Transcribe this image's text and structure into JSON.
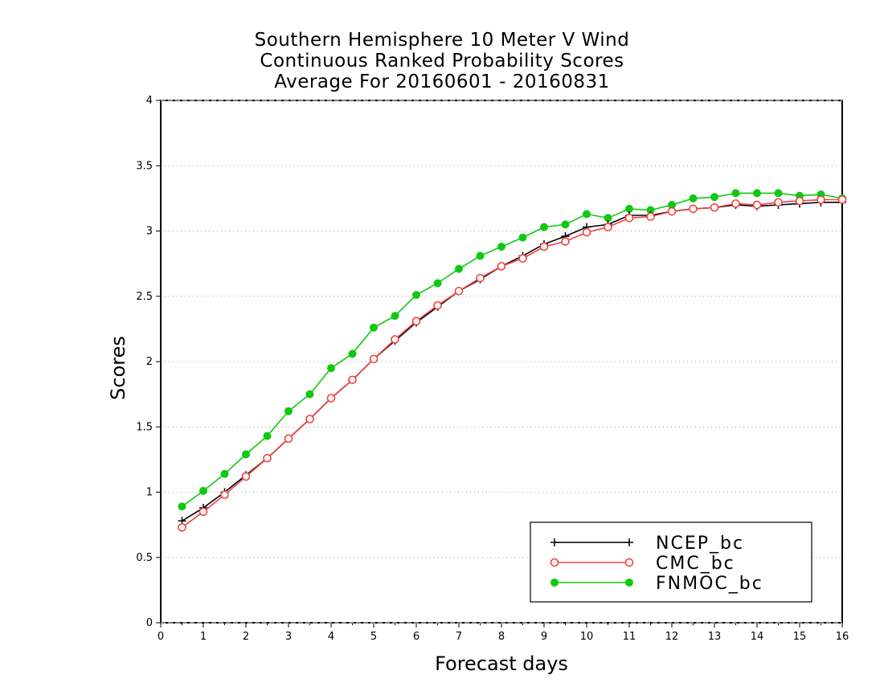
{
  "chart_data": {
    "type": "line",
    "title": "Southern Hemisphere 10 Meter V Wind",
    "subtitle": "Continuous Ranked Probability Scores",
    "period": "Average For 20160601 - 20160831",
    "xlabel": "Forecast days",
    "ylabel": "Scores",
    "xlim": [
      0,
      16
    ],
    "ylim": [
      0,
      4
    ],
    "xticks": [
      "0",
      "1",
      "2",
      "3",
      "4",
      "5",
      "6",
      "7",
      "8",
      "9",
      "10",
      "11",
      "12",
      "13",
      "14",
      "15",
      "16"
    ],
    "yticks": [
      "0",
      "0.5",
      "1",
      "1.5",
      "2",
      "2.5",
      "3",
      "3.5",
      "4"
    ],
    "grid": "horizontal dotted",
    "legend_position": "bottom-right",
    "x": [
      0.5,
      1,
      1.5,
      2,
      2.5,
      3,
      3.5,
      4,
      4.5,
      5,
      5.5,
      6,
      6.5,
      7,
      7.5,
      8,
      8.5,
      9,
      9.5,
      10,
      10.5,
      11,
      11.5,
      12,
      12.5,
      13,
      13.5,
      14,
      14.5,
      15,
      15.5,
      16
    ],
    "series": [
      {
        "name": "NCEP_bc",
        "color": "#000000",
        "marker": "plus",
        "values": [
          0.78,
          0.88,
          1.0,
          1.13,
          1.26,
          1.41,
          1.56,
          1.72,
          1.86,
          2.02,
          2.16,
          2.3,
          2.42,
          2.54,
          2.63,
          2.73,
          2.81,
          2.9,
          2.96,
          3.03,
          3.05,
          3.12,
          3.12,
          3.15,
          3.17,
          3.18,
          3.2,
          3.19,
          3.2,
          3.21,
          3.22,
          3.22
        ]
      },
      {
        "name": "CMC_bc",
        "color": "#f04040",
        "marker": "open-circle",
        "values": [
          0.73,
          0.85,
          0.98,
          1.12,
          1.26,
          1.41,
          1.56,
          1.72,
          1.86,
          2.02,
          2.17,
          2.31,
          2.43,
          2.54,
          2.64,
          2.73,
          2.79,
          2.88,
          2.92,
          2.99,
          3.03,
          3.1,
          3.11,
          3.15,
          3.17,
          3.18,
          3.21,
          3.2,
          3.22,
          3.23,
          3.24,
          3.24
        ]
      },
      {
        "name": "FNMOC_bc",
        "color": "#10c810",
        "marker": "filled-circle",
        "values": [
          0.89,
          1.01,
          1.14,
          1.29,
          1.43,
          1.62,
          1.75,
          1.95,
          2.06,
          2.26,
          2.35,
          2.51,
          2.6,
          2.71,
          2.81,
          2.88,
          2.95,
          3.03,
          3.05,
          3.13,
          3.1,
          3.17,
          3.16,
          3.2,
          3.25,
          3.26,
          3.29,
          3.29,
          3.29,
          3.27,
          3.28,
          3.25
        ]
      }
    ]
  }
}
